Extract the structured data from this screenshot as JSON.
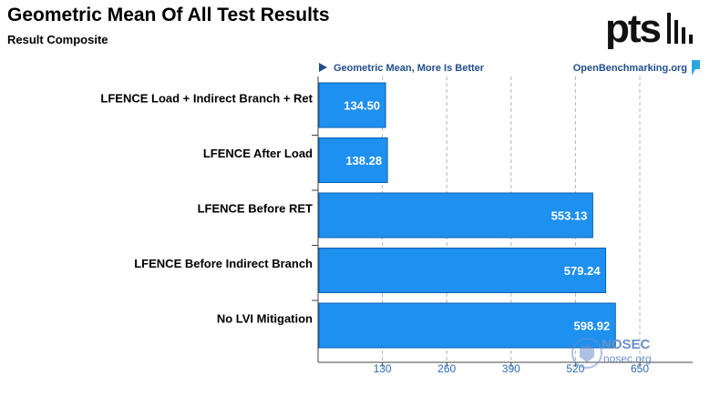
{
  "header": {
    "title": "Geometric Mean Of All Test Results",
    "subtitle": "Result Composite"
  },
  "brand": {
    "logo_text": "ptsl",
    "site": "OpenBenchmarking.org"
  },
  "watermark": {
    "text": "NOSEC",
    "sub": "nosec.org"
  },
  "colors": {
    "bar": "#1e90f0",
    "bar_edge": "#0a5fb0",
    "grid": "#b5b5b5",
    "tick": "#2a6bb8"
  },
  "chart_data": {
    "type": "bar",
    "orientation": "horizontal",
    "title": "Geometric Mean Of All Test Results",
    "subtitle": "Result Composite",
    "note": "Geometric Mean, More Is Better",
    "categories": [
      "LFENCE Load + Indirect Branch + Ret",
      "LFENCE After Load",
      "LFENCE Before RET",
      "LFENCE Before Indirect Branch",
      "No LVI Mitigation"
    ],
    "values": [
      134.5,
      138.28,
      553.13,
      579.24,
      598.92
    ],
    "value_labels": [
      "134.50",
      "138.28",
      "553.13",
      "579.24",
      "598.92"
    ],
    "xticks": [
      130,
      260,
      390,
      520,
      650
    ],
    "xlim": [
      0,
      700
    ],
    "grid": true
  }
}
